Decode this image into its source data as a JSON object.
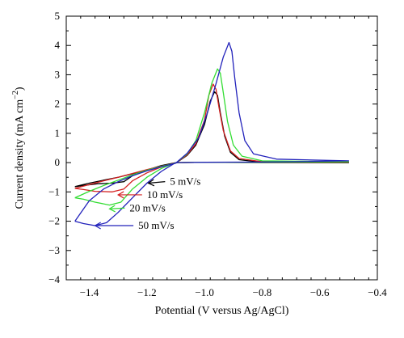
{
  "chart_data": {
    "type": "line",
    "title": "",
    "xlabel": "Potential (V versus Ag/AgCl)",
    "ylabel": "Current density (mA cm",
    "ylabel_sup": "−2",
    "ylabel_close": ")",
    "xlim": [
      -1.48,
      -0.4
    ],
    "ylim": [
      -4,
      5
    ],
    "xticks": [
      -1.4,
      -1.2,
      -1.0,
      -0.8,
      -0.6,
      -0.4
    ],
    "xtick_labels": [
      "−1.4",
      "−1.2",
      "−1.0",
      "−0.8",
      "−0.6",
      "−0.4"
    ],
    "yticks": [
      -4,
      -3,
      -2,
      -1,
      0,
      1,
      2,
      3,
      4,
      5
    ],
    "ytick_labels": [
      "−4",
      "−3",
      "−2",
      "−1",
      "0",
      "1",
      "2",
      "3",
      "4",
      "5"
    ],
    "grid": false,
    "series": [
      {
        "name": "5 mV/s",
        "color": "#000000",
        "points": [
          [
            -1.45,
            -0.82
          ],
          [
            -1.4,
            -0.7
          ],
          [
            -1.35,
            -0.6
          ],
          [
            -1.3,
            -0.5
          ],
          [
            -1.25,
            -0.38
          ],
          [
            -1.2,
            -0.25
          ],
          [
            -1.15,
            -0.12
          ],
          [
            -1.1,
            -0.02
          ],
          [
            -1.06,
            0.25
          ],
          [
            -1.03,
            0.6
          ],
          [
            -1.0,
            1.3
          ],
          [
            -0.98,
            2.1
          ],
          [
            -0.965,
            2.42
          ],
          [
            -0.955,
            2.3
          ],
          [
            -0.945,
            1.7
          ],
          [
            -0.93,
            0.9
          ],
          [
            -0.91,
            0.35
          ],
          [
            -0.88,
            0.1
          ],
          [
            -0.8,
            0.01
          ],
          [
            -0.5,
            0.0
          ],
          [
            -0.8,
            0.0
          ],
          [
            -1.0,
            0.01
          ],
          [
            -1.1,
            0.0
          ],
          [
            -1.15,
            -0.1
          ],
          [
            -1.2,
            -0.25
          ],
          [
            -1.25,
            -0.45
          ],
          [
            -1.28,
            -0.65
          ],
          [
            -1.32,
            -0.7
          ],
          [
            -1.37,
            -0.72
          ],
          [
            -1.42,
            -0.78
          ],
          [
            -1.45,
            -0.82
          ]
        ]
      },
      {
        "name": "10 mV/s",
        "color": "#d42020",
        "points": [
          [
            -1.45,
            -0.88
          ],
          [
            -1.4,
            -0.75
          ],
          [
            -1.35,
            -0.62
          ],
          [
            -1.3,
            -0.5
          ],
          [
            -1.25,
            -0.37
          ],
          [
            -1.2,
            -0.24
          ],
          [
            -1.15,
            -0.12
          ],
          [
            -1.1,
            -0.02
          ],
          [
            -1.06,
            0.27
          ],
          [
            -1.03,
            0.65
          ],
          [
            -1.0,
            1.45
          ],
          [
            -0.985,
            2.3
          ],
          [
            -0.97,
            2.68
          ],
          [
            -0.96,
            2.5
          ],
          [
            -0.95,
            1.9
          ],
          [
            -0.935,
            1.1
          ],
          [
            -0.91,
            0.4
          ],
          [
            -0.88,
            0.14
          ],
          [
            -0.8,
            0.03
          ],
          [
            -0.5,
            0.02
          ],
          [
            -0.8,
            0.01
          ],
          [
            -1.0,
            0.01
          ],
          [
            -1.1,
            0.0
          ],
          [
            -1.15,
            -0.15
          ],
          [
            -1.2,
            -0.35
          ],
          [
            -1.25,
            -0.62
          ],
          [
            -1.28,
            -0.9
          ],
          [
            -1.32,
            -1.0
          ],
          [
            -1.38,
            -0.98
          ],
          [
            -1.42,
            -0.92
          ],
          [
            -1.45,
            -0.88
          ]
        ]
      },
      {
        "name": "20 mV/s",
        "color": "#33dd33",
        "points": [
          [
            -1.45,
            -1.2
          ],
          [
            -1.4,
            -0.98
          ],
          [
            -1.35,
            -0.78
          ],
          [
            -1.3,
            -0.6
          ],
          [
            -1.25,
            -0.42
          ],
          [
            -1.2,
            -0.26
          ],
          [
            -1.15,
            -0.13
          ],
          [
            -1.1,
            -0.02
          ],
          [
            -1.06,
            0.3
          ],
          [
            -1.03,
            0.75
          ],
          [
            -1.0,
            1.7
          ],
          [
            -0.975,
            2.7
          ],
          [
            -0.955,
            3.2
          ],
          [
            -0.945,
            3.05
          ],
          [
            -0.935,
            2.4
          ],
          [
            -0.92,
            1.4
          ],
          [
            -0.9,
            0.6
          ],
          [
            -0.87,
            0.22
          ],
          [
            -0.8,
            0.06
          ],
          [
            -0.5,
            0.03
          ],
          [
            -0.8,
            0.01
          ],
          [
            -1.0,
            0.01
          ],
          [
            -1.1,
            0.0
          ],
          [
            -1.15,
            -0.2
          ],
          [
            -1.2,
            -0.5
          ],
          [
            -1.25,
            -0.9
          ],
          [
            -1.29,
            -1.35
          ],
          [
            -1.33,
            -1.45
          ],
          [
            -1.38,
            -1.35
          ],
          [
            -1.42,
            -1.25
          ],
          [
            -1.45,
            -1.2
          ]
        ]
      },
      {
        "name": "50 mV/s",
        "color": "#2222bb",
        "points": [
          [
            -1.45,
            -2.0
          ],
          [
            -1.4,
            -1.3
          ],
          [
            -1.35,
            -0.9
          ],
          [
            -1.3,
            -0.65
          ],
          [
            -1.25,
            -0.45
          ],
          [
            -1.2,
            -0.28
          ],
          [
            -1.15,
            -0.14
          ],
          [
            -1.1,
            -0.02
          ],
          [
            -1.06,
            0.32
          ],
          [
            -1.02,
            0.85
          ],
          [
            -0.99,
            1.7
          ],
          [
            -0.96,
            2.7
          ],
          [
            -0.935,
            3.6
          ],
          [
            -0.915,
            4.1
          ],
          [
            -0.905,
            3.8
          ],
          [
            -0.895,
            2.9
          ],
          [
            -0.88,
            1.7
          ],
          [
            -0.86,
            0.75
          ],
          [
            -0.83,
            0.3
          ],
          [
            -0.75,
            0.12
          ],
          [
            -0.5,
            0.06
          ],
          [
            -0.8,
            0.02
          ],
          [
            -1.0,
            0.01
          ],
          [
            -1.1,
            0.0
          ],
          [
            -1.15,
            -0.3
          ],
          [
            -1.2,
            -0.7
          ],
          [
            -1.25,
            -1.2
          ],
          [
            -1.3,
            -1.7
          ],
          [
            -1.34,
            -2.05
          ],
          [
            -1.38,
            -2.15
          ],
          [
            -1.42,
            -2.08
          ],
          [
            -1.45,
            -2.0
          ]
        ]
      }
    ],
    "annotations": [
      {
        "text": "5 mV/s",
        "color": "#000000",
        "arrow_to": [
          -1.195,
          -0.7
        ]
      },
      {
        "text": "10 mV/s",
        "color": "#d42020",
        "arrow_to": [
          -1.3,
          -1.1
        ]
      },
      {
        "text": "20 mV/s",
        "color": "#33dd33",
        "arrow_to": [
          -1.33,
          -1.58
        ]
      },
      {
        "text": "50 mV/s",
        "color": "#2222bb",
        "arrow_to": [
          -1.38,
          -2.15
        ]
      }
    ]
  }
}
